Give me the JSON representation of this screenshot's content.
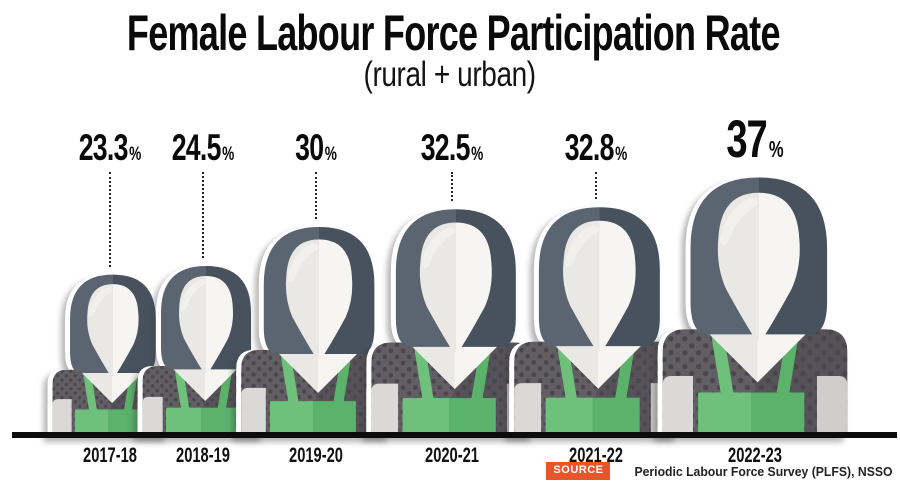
{
  "header": {
    "title": "Female Labour Force Participation Rate",
    "subtitle": "(rural + urban)"
  },
  "source": {
    "badge_label": "SOURCE",
    "text": "Periodic Labour Force Survey (PLFS), NSSO",
    "badge_color": "#e8552a"
  },
  "chart_data": {
    "type": "bar",
    "style": "pictogram - woman bust icons scaled proportionally to value, standing on a common baseline",
    "title": "Female Labour Force Participation Rate",
    "subtitle": "(rural + urban)",
    "categories": [
      "2017-18",
      "2018-19",
      "2019-20",
      "2020-21",
      "2021-22",
      "2022-23"
    ],
    "values": [
      23.3,
      24.5,
      30,
      32.5,
      32.8,
      37
    ],
    "value_labels": [
      "23.3",
      "24.5",
      "30",
      "32.5",
      "32.8",
      "37"
    ],
    "unit": "%",
    "highlighted_index": 5,
    "ylim": [
      0,
      40
    ],
    "grid": false,
    "legend": false,
    "source": "Periodic Labour Force Survey (PLFS), NSSO",
    "colors": {
      "hair_left": "#5a6571",
      "hair_right": "#47525e",
      "face_left": "#e9e8e4",
      "face_right": "#f6f5f2",
      "shirt_left": "#615f64",
      "shirt_right": "#555359",
      "shirt_dot": "#49474c",
      "apron_left": "#6fc07b",
      "apron_right": "#5bb26a",
      "arm_left": "#dad9d7",
      "arm_right": "#cfcecc",
      "highlight": "#f1f0ed",
      "baseline": "#0c0c0c",
      "label_text": "#0a0a0a"
    }
  }
}
